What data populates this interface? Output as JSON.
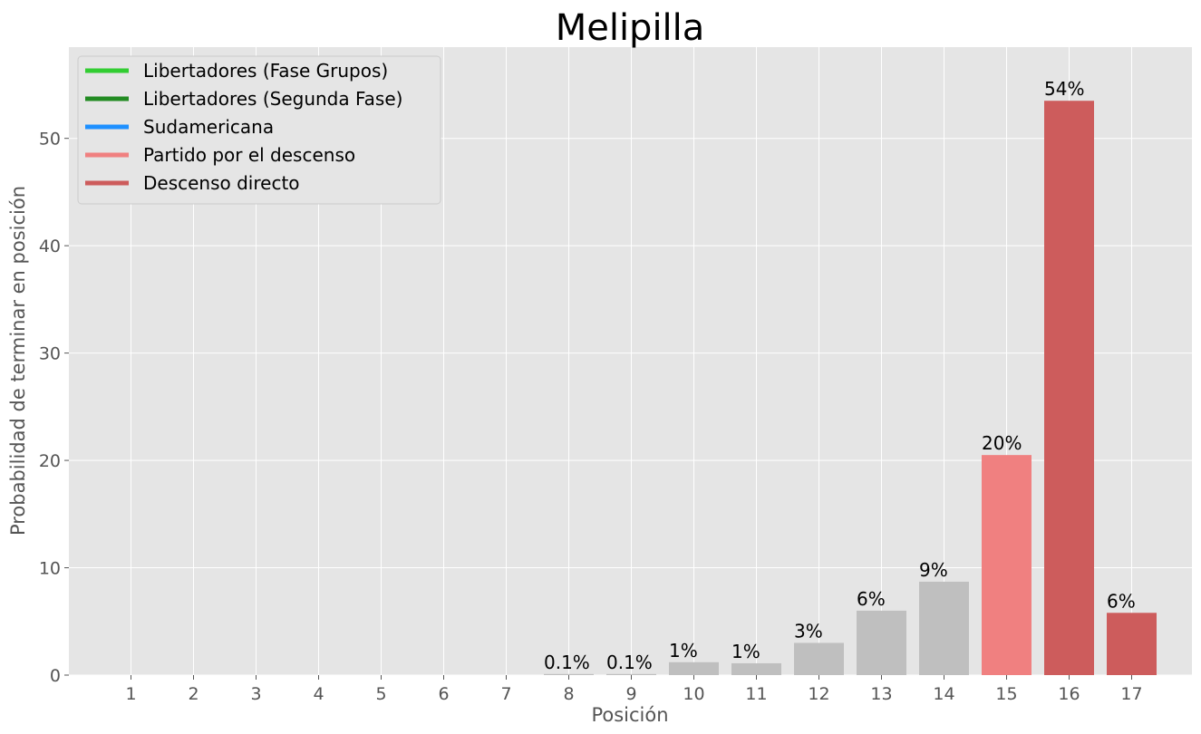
{
  "chart_data": {
    "type": "bar",
    "title": "Melipilla",
    "xlabel": "Posición",
    "ylabel": "Probabilidad de terminar en posición",
    "ylim": [
      0,
      58.5
    ],
    "yticks": [
      0,
      10,
      20,
      30,
      40,
      50
    ],
    "grid": true,
    "legend_position": "top-left",
    "categories": [
      "1",
      "2",
      "3",
      "4",
      "5",
      "6",
      "7",
      "8",
      "9",
      "10",
      "11",
      "12",
      "13",
      "14",
      "15",
      "16",
      "17"
    ],
    "values": [
      0,
      0,
      0,
      0,
      0,
      0,
      0,
      0.1,
      0.1,
      1.2,
      1.1,
      3.0,
      6.0,
      8.7,
      20.5,
      53.5,
      5.8
    ],
    "data_labels": [
      "",
      "",
      "",
      "",
      "",
      "",
      "",
      "0.1%",
      "0.1%",
      "1%",
      "1%",
      "3%",
      "6%",
      "9%",
      "20%",
      "54%",
      "6%"
    ],
    "bar_colors": [
      "#bfbfbf",
      "#bfbfbf",
      "#bfbfbf",
      "#bfbfbf",
      "#bfbfbf",
      "#bfbfbf",
      "#bfbfbf",
      "#bfbfbf",
      "#bfbfbf",
      "#bfbfbf",
      "#bfbfbf",
      "#bfbfbf",
      "#bfbfbf",
      "#bfbfbf",
      "#f08080",
      "#cd5c5c",
      "#cd5c5c"
    ],
    "legend": [
      {
        "name": "Libertadores (Fase Grupos)",
        "color": "#32cd32"
      },
      {
        "name": "Libertadores (Segunda Fase)",
        "color": "#228b22"
      },
      {
        "name": "Sudamericana",
        "color": "#1e90ff"
      },
      {
        "name": "Partido por el descenso",
        "color": "#f08080"
      },
      {
        "name": "Descenso directo",
        "color": "#cd5c5c"
      }
    ]
  },
  "colors": {
    "plot_background": "#e5e5e5",
    "grid": "#ffffff"
  }
}
